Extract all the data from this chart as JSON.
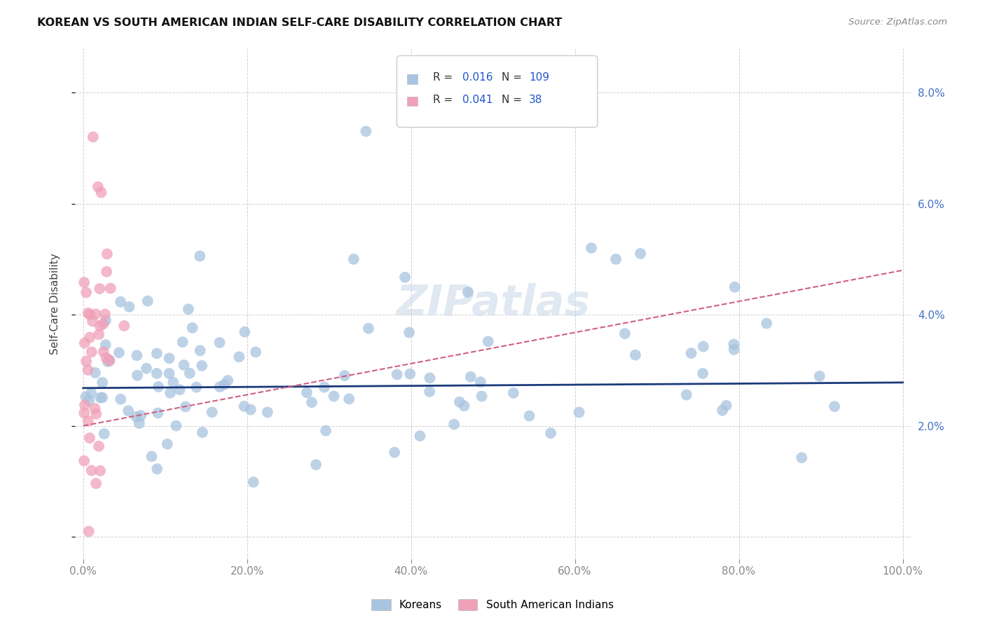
{
  "title": "KOREAN VS SOUTH AMERICAN INDIAN SELF-CARE DISABILITY CORRELATION CHART",
  "source": "Source: ZipAtlas.com",
  "ylabel": "Self-Care Disability",
  "korean_color": "#a8c4e0",
  "sam_indian_color": "#f0a0b8",
  "korean_line_color": "#1a3a7a",
  "sam_line_color": "#d06080",
  "legend_R_korean": "0.016",
  "legend_N_korean": "109",
  "legend_R_sam": "0.041",
  "legend_N_sam": "38",
  "legend_color": "#2255cc",
  "watermark": "ZIPatlas",
  "ytick_color": "#4472c4",
  "korean_seed": 42,
  "sam_seed": 7
}
